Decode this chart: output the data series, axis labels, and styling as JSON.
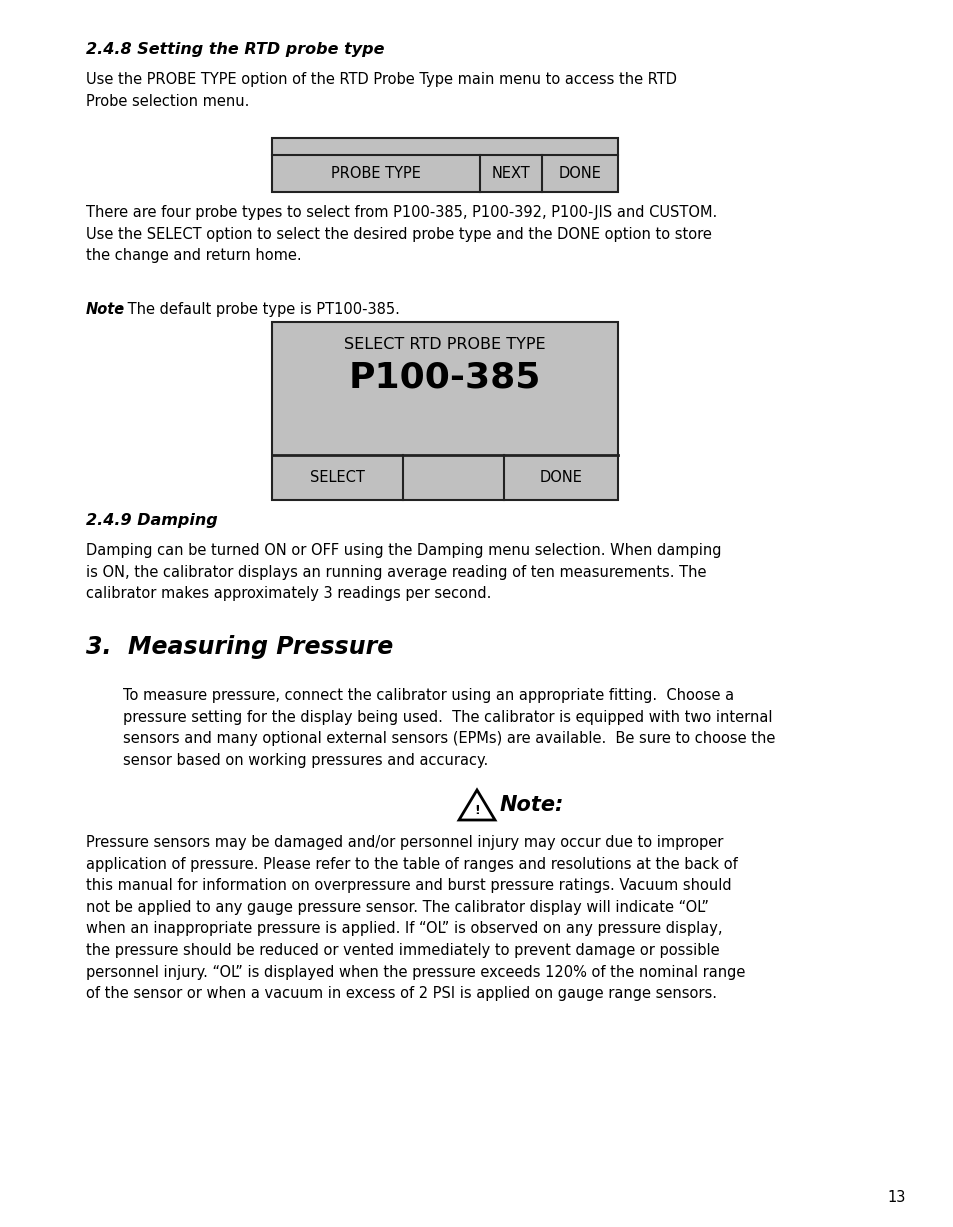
{
  "page_bg": "#ffffff",
  "section_248_title": "2.4.8 Setting the RTD probe type",
  "section_248_body1": "Use the PROBE TYPE option of the RTD Probe Type main menu to access the RTD\nProbe selection menu.",
  "section_248_body2": "There are four probe types to select from P100-385, P100-392, P100-JIS and CUSTOM.\nUse the SELECT option to select the desired probe type and the DONE option to store\nthe change and return home.",
  "note_248_bold": "Note",
  "note_248_rest": ": The default probe type is PT100-385.",
  "lcd1_bg": "#c0c0c0",
  "lcd1_border": "#222222",
  "lcd2_line1": "SELECT RTD PROBE TYPE",
  "lcd2_line2": "P100-385",
  "lcd2_bg": "#c0c0c0",
  "lcd2_border": "#222222",
  "section_249_title": "2.4.9 Damping",
  "section_249_body": "Damping can be turned ON or OFF using the Damping menu selection. When damping\nis ON, the calibrator displays an running average reading of ten measurements. The\ncalibrator makes approximately 3 readings per second.",
  "section_3_title": "3.  Measuring Pressure",
  "section_3_body": "To measure pressure, connect the calibrator using an appropriate fitting.  Choose a\npressure setting for the display being used.  The calibrator is equipped with two internal\nsensors and many optional external sensors (EPMs) are available.  Be sure to choose the\nsensor based on working pressures and accuracy.",
  "note_label": "Note:",
  "note_body": "Pressure sensors may be damaged and/or personnel injury may occur due to improper\napplication of pressure. Please refer to the table of ranges and resolutions at the back of\nthis manual for information on overpressure and burst pressure ratings. Vacuum should\nnot be applied to any gauge pressure sensor. The calibrator display will indicate “OL”\nwhen an inappropriate pressure is applied. If “OL” is observed on any pressure display,\nthe pressure should be reduced or vented immediately to prevent damage or possible\npersonnel injury. “OL” is displayed when the pressure exceeds 120% of the nominal range\nof the sensor or when a vacuum in excess of 2 PSI is applied on gauge range sensors.",
  "page_number": "13",
  "text_color": "#000000",
  "body_fontsize": 10.5,
  "title_fontsize": 11.5,
  "section3_fontsize": 17,
  "lcd_fontsize": 10.5,
  "lcd2_big_fontsize": 26,
  "note_fontsize": 15
}
